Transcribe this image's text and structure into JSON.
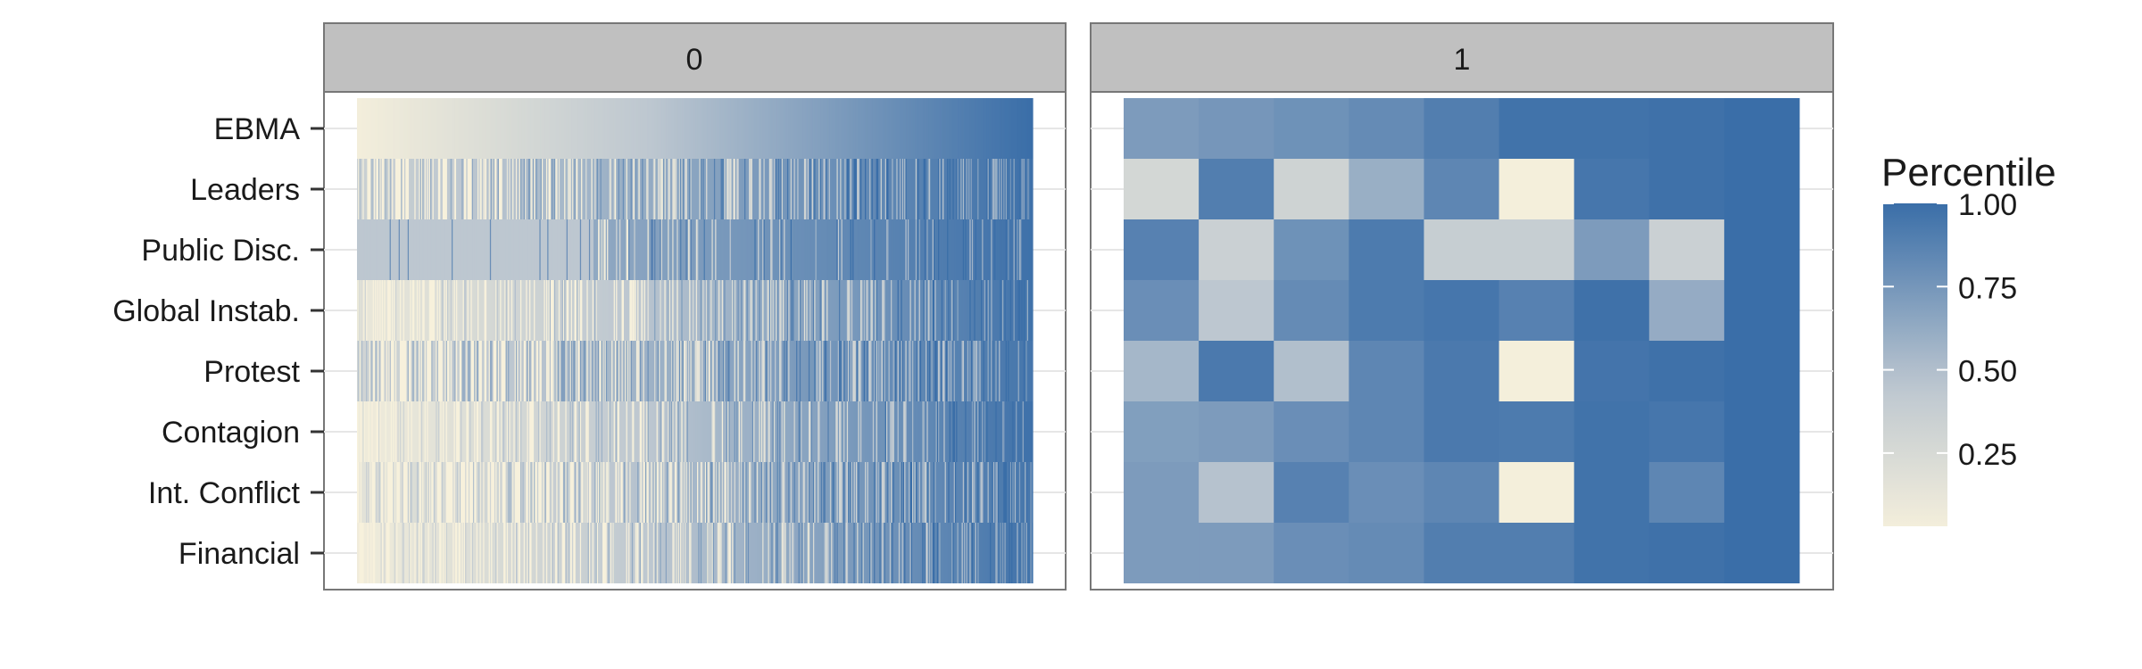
{
  "chart_data": {
    "type": "heatmap",
    "title": "",
    "facets": [
      {
        "label": "0",
        "rows": [
          "EBMA",
          "Leaders",
          "Public Disc.",
          "Global Instab.",
          "Protest",
          "Contagion",
          "Int. Conflict",
          "Financial"
        ],
        "n_columns": 600,
        "row_profiles": [
          {
            "row": "EBMA",
            "low": 0.03,
            "high": 1.0,
            "noise": 0.0
          },
          {
            "row": "Leaders",
            "low": 0.35,
            "high": 0.98,
            "noise": 0.45
          },
          {
            "row": "Public Disc.",
            "low": 0.45,
            "high": 0.98,
            "noise": 0.2
          },
          {
            "row": "Global Instab.",
            "low": 0.1,
            "high": 0.97,
            "noise": 0.35
          },
          {
            "row": "Protest",
            "low": 0.3,
            "high": 0.95,
            "noise": 0.5
          },
          {
            "row": "Contagion",
            "low": 0.05,
            "high": 0.98,
            "noise": 0.3
          },
          {
            "row": "Int. Conflict",
            "low": 0.15,
            "high": 0.95,
            "noise": 0.5
          },
          {
            "row": "Financial",
            "low": 0.05,
            "high": 0.97,
            "noise": 0.35
          }
        ]
      },
      {
        "label": "1",
        "rows": [
          "EBMA",
          "Leaders",
          "Public Disc.",
          "Global Instab.",
          "Protest",
          "Contagion",
          "Int. Conflict",
          "Financial"
        ],
        "columns": 9,
        "values": [
          [
            0.72,
            0.75,
            0.78,
            0.82,
            0.9,
            0.97,
            0.97,
            0.98,
            1.0
          ],
          [
            0.28,
            0.9,
            0.32,
            0.6,
            0.85,
            0.02,
            0.95,
            0.98,
            1.0
          ],
          [
            0.88,
            0.35,
            0.78,
            0.92,
            0.38,
            0.38,
            0.72,
            0.35,
            1.0
          ],
          [
            0.8,
            0.45,
            0.82,
            0.92,
            0.95,
            0.88,
            0.98,
            0.62,
            1.0
          ],
          [
            0.55,
            0.93,
            0.5,
            0.85,
            0.93,
            0.02,
            0.96,
            0.98,
            1.0
          ],
          [
            0.7,
            0.72,
            0.8,
            0.85,
            0.93,
            0.92,
            0.97,
            0.95,
            1.0
          ],
          [
            0.72,
            0.48,
            0.88,
            0.8,
            0.85,
            0.02,
            0.97,
            0.85,
            1.0
          ],
          [
            0.72,
            0.72,
            0.8,
            0.82,
            0.9,
            0.9,
            0.97,
            0.98,
            1.0
          ]
        ]
      }
    ],
    "legend": {
      "title": "Percentile",
      "ticks": [
        "1.00",
        "0.75",
        "0.50",
        "0.25"
      ],
      "tick_values": [
        1.0,
        0.75,
        0.5,
        0.25
      ],
      "range": [
        0.03,
        1.0
      ],
      "placement": "right"
    },
    "colors": {
      "low": "#f7f1dc",
      "mid": "#bdc7d0",
      "high": "#3a6ea8",
      "strip_bg": "#c0c0c0",
      "panel_border": "#777777",
      "grid": "#e6e6e6"
    }
  }
}
